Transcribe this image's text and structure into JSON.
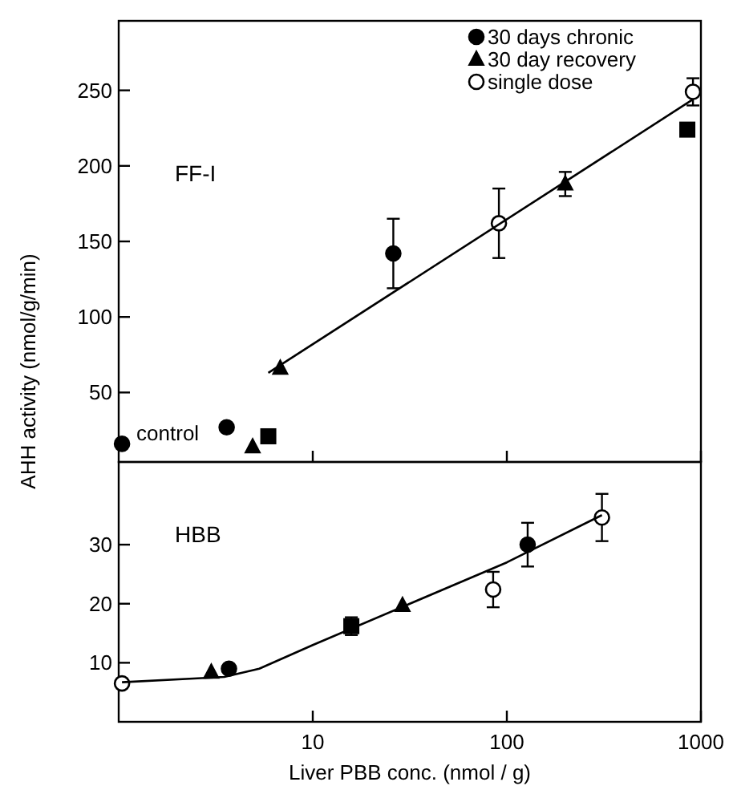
{
  "chart_data": [
    {
      "type": "scatter",
      "ylabel": "AHH activity (nmol/g/min)",
      "log": "x",
      "xlim": [
        1,
        1000
      ],
      "xticks": [
        10,
        100,
        1000
      ],
      "ylim": [
        4,
        296
      ],
      "yticks": [
        50,
        100,
        150,
        200,
        250
      ],
      "tick_labels": "y",
      "legend": "top right",
      "grid": false,
      "annotations": [
        "FF-I",
        {
          "text": "control",
          "x": 1.04,
          "y": 16
        }
      ],
      "series": [
        {
          "name": "30 days chronic",
          "color": "#000000",
          "marker": "circle",
          "x": [
            1.04,
            3.6,
            26
          ],
          "values": [
            16,
            27,
            142
          ],
          "errors": [
            null,
            null,
            23
          ]
        },
        {
          "name": "30 day recovery",
          "color": "#000000",
          "marker": "triangle",
          "x": [
            4.9,
            6.8,
            200
          ],
          "values": [
            14,
            66,
            188
          ],
          "errors": [
            null,
            null,
            8
          ]
        },
        {
          "name": "single dose",
          "color": "#ffffff",
          "marker": "circle",
          "x": [
            91,
            910
          ],
          "values": [
            162,
            249
          ],
          "errors": [
            23,
            9
          ]
        },
        {
          "color": "#000000",
          "marker": "square",
          "x": [
            5.9,
            851
          ],
          "values": [
            21,
            224
          ],
          "errors": [
            4,
            null
          ]
        },
        {
          "type": "line",
          "color": "#000000",
          "marker": "none",
          "x": [
            5.9,
            910
          ],
          "values": [
            63,
            244
          ]
        }
      ]
    },
    {
      "type": "scatter",
      "xlabel": "Liver PBB conc. (nmol / g)",
      "log": "x",
      "xlim": [
        1,
        1000
      ],
      "xticks": [
        10,
        100,
        1000
      ],
      "ylim": [
        0,
        44
      ],
      "yticks": [
        10,
        20,
        30
      ],
      "grid": false,
      "annotations": [
        "HBB"
      ],
      "series": [
        {
          "color": "#000000",
          "marker": "circle",
          "x": [
            3.7,
            128
          ],
          "values": [
            9,
            30
          ],
          "errors": [
            null,
            3.7
          ]
        },
        {
          "color": "#000000",
          "marker": "triangle",
          "x": [
            3.0,
            29
          ],
          "values": [
            8.4,
            19.7
          ],
          "errors": [
            null,
            null
          ]
        },
        {
          "color": "#ffffff",
          "marker": "circle",
          "x": [
            1.04,
            85,
            309
          ],
          "values": [
            6.5,
            22.4,
            34.6
          ],
          "errors": [
            null,
            3,
            4
          ]
        },
        {
          "color": "#000000",
          "marker": "square",
          "x": [
            15.8
          ],
          "values": [
            16.2
          ],
          "errors": [
            1.5
          ]
        },
        {
          "type": "line",
          "color": "#000000",
          "marker": "none",
          "x": [
            1.04,
            3.5,
            5.3,
            10,
            100,
            309
          ],
          "values": [
            6.7,
            7.6,
            9,
            13,
            27,
            35
          ]
        }
      ]
    }
  ]
}
